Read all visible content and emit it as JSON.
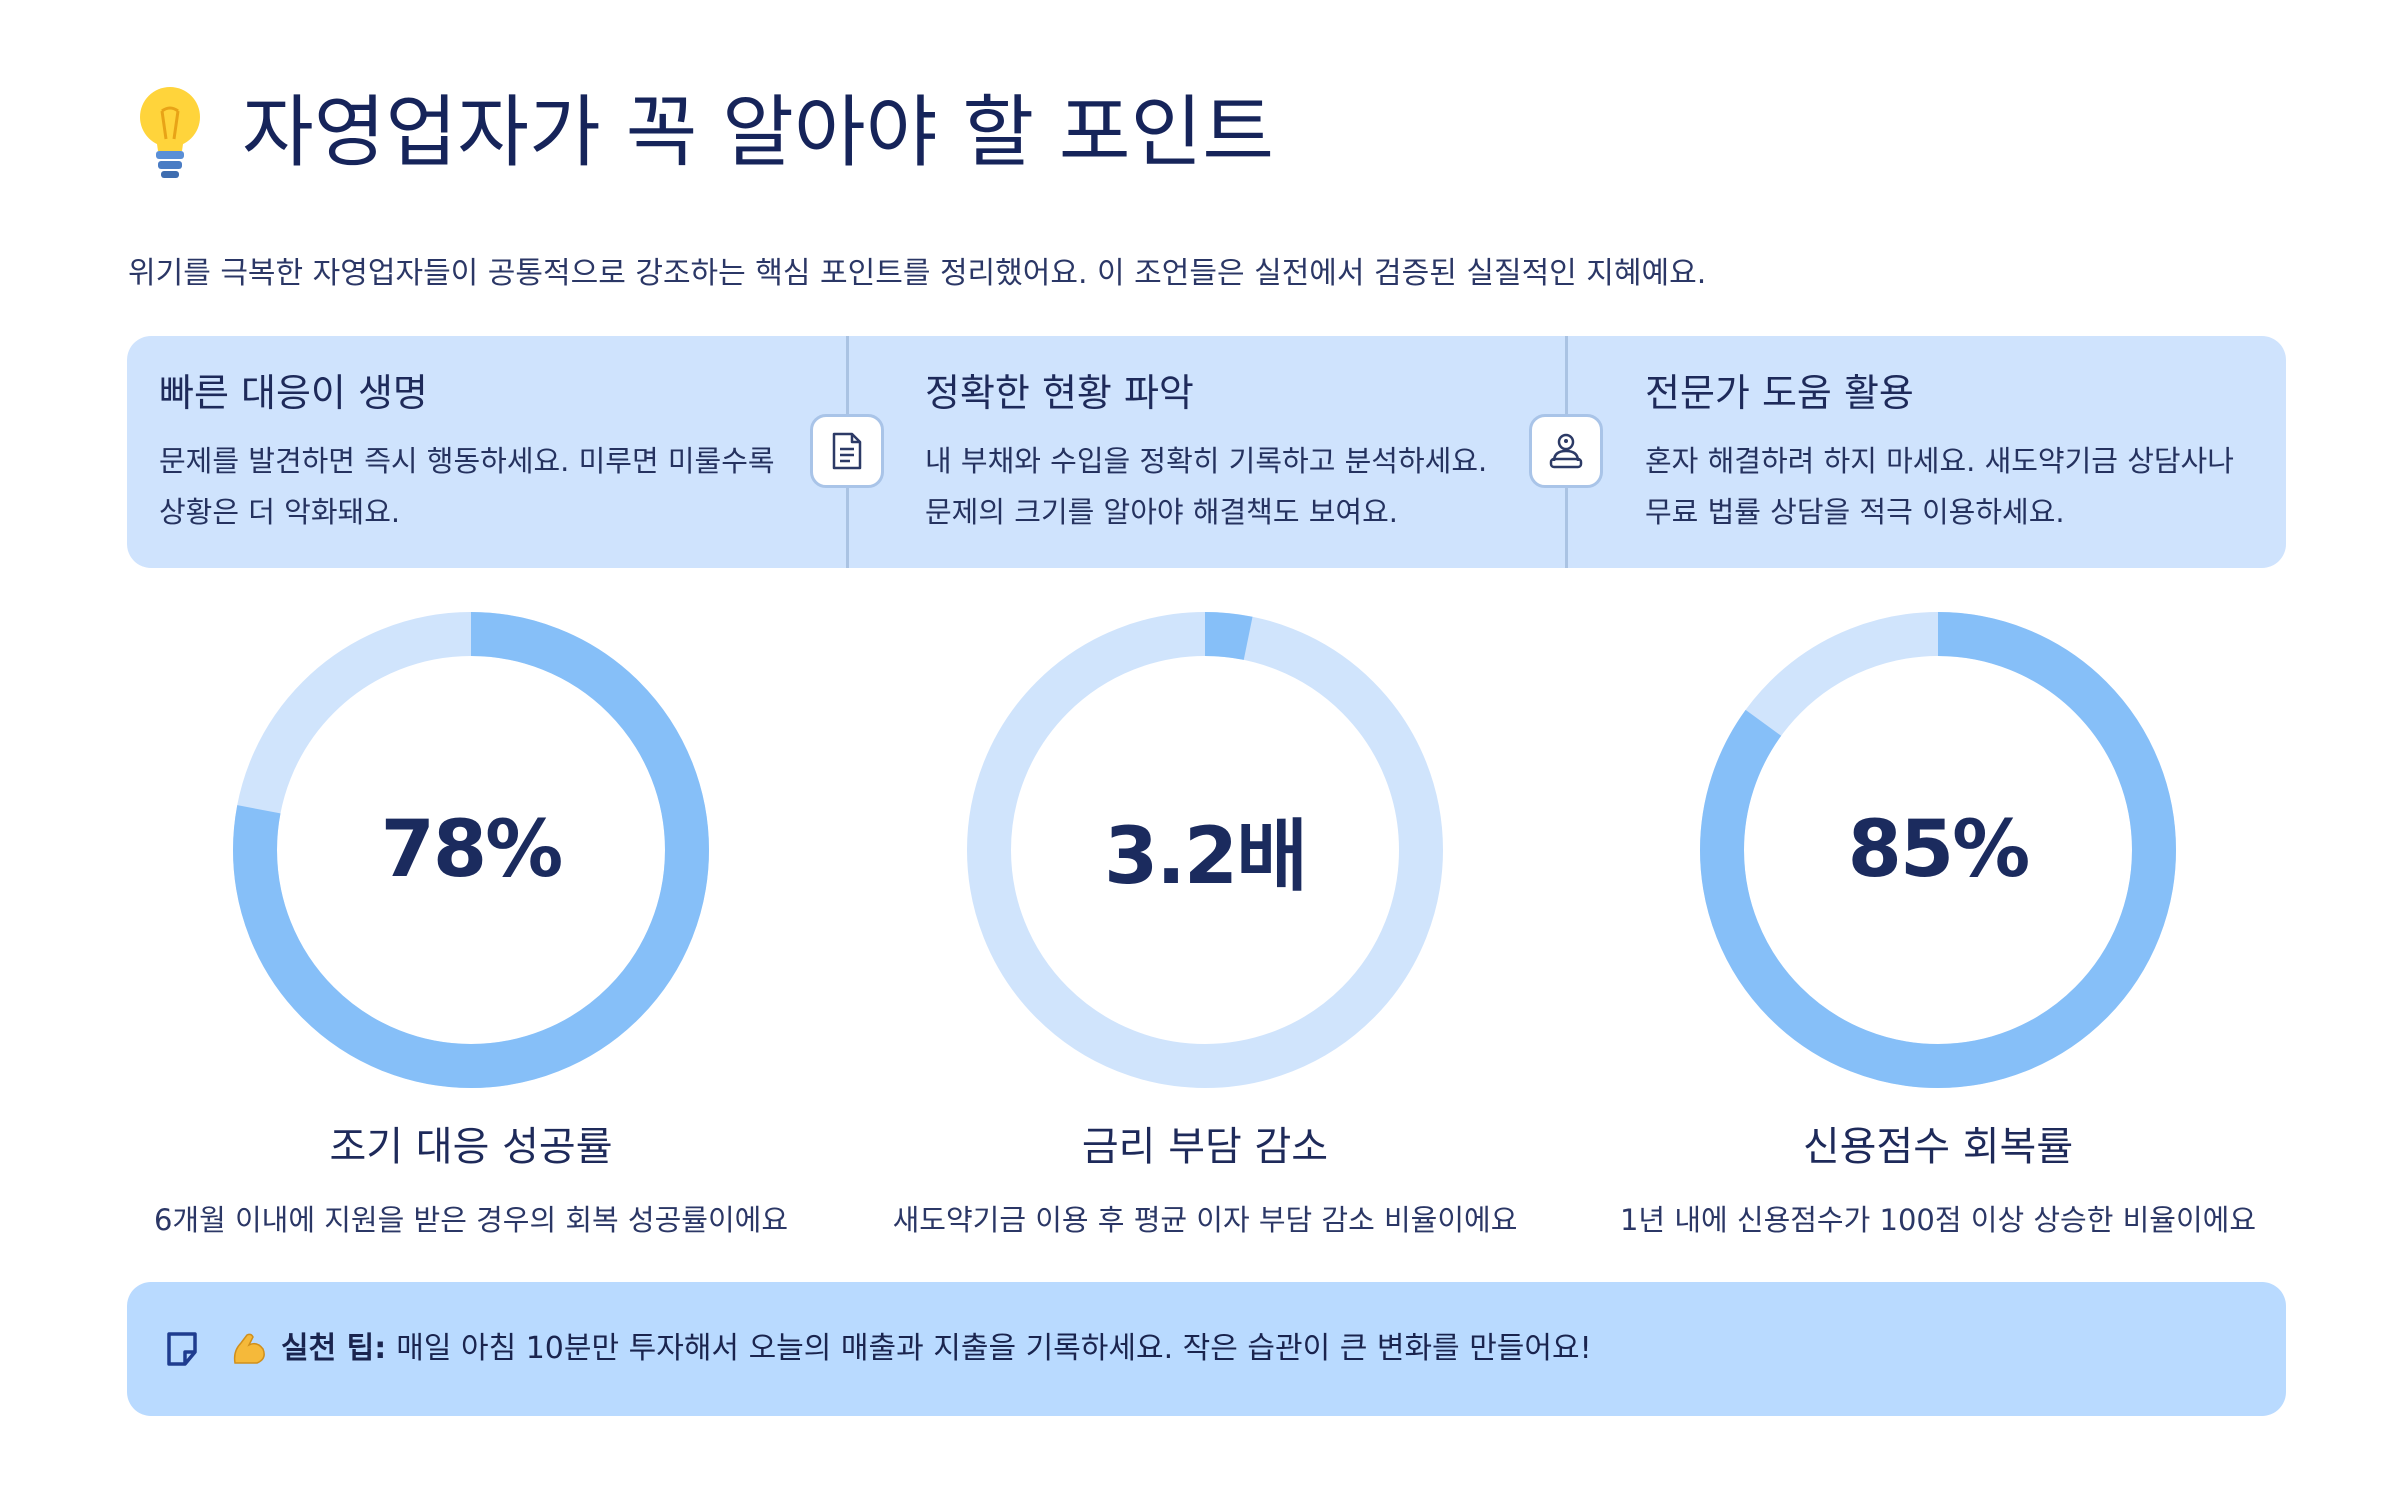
{
  "header": {
    "title": "자영업자가 꼭 알아야 할 포인트",
    "title_icon": "lightbulb-icon",
    "subtitle": "위기를 극복한 자영업자들이 공통적으로 강조하는 핵심 포인트를 정리했어요. 이 조언들은 실전에서 검증된 실질적인 지혜예요."
  },
  "points": [
    {
      "title": "빠른 대응이 생명",
      "desc": "문제를 발견하면 즉시 행동하세요. 미루면 미룰수록 상황은 더 악화돼요."
    },
    {
      "title": "정확한 현황 파악",
      "desc": "내 부채와 수입을 정확히 기록하고 분석하세요. 문제의 크기를 알아야 해결책도 보여요.",
      "icon": "document-icon"
    },
    {
      "title": "전문가 도움 활용",
      "desc": "혼자 해결하려 하지 마세요. 새도약기금 상담사나 무료 법률 상담을 적극 이용하세요.",
      "icon": "advisor-icon"
    }
  ],
  "chart_data": {
    "type": "pie",
    "variant": "donut",
    "gauges": [
      {
        "value_label": "78%",
        "fraction": 0.78,
        "label": "조기 대응 성공률",
        "description": "6개월 이내에 지원을 받은 경우의 회복 성공률이에요"
      },
      {
        "value_label": "3.2배",
        "fraction": 0.032,
        "label": "금리 부담 감소",
        "description": "새도약기금 이용 후 평균 이자 부담 감소 비율이에요"
      },
      {
        "value_label": "85%",
        "fraction": 0.85,
        "label": "신용점수 회복률",
        "description": "1년 내에 신용점수가 100점 이상 상승한 비율이에요"
      }
    ],
    "colors": {
      "filled": "#86bff8",
      "track": "#d0e4fc"
    }
  },
  "tip": {
    "icon": "note-icon",
    "emoji": "flexed-biceps-icon",
    "label": "실천 팁:",
    "text": "매일 아침 10분만 투자해서 오늘의 매출과 지출을 기록하세요. 작은 습관이 큰 변화를 만들어요!"
  }
}
